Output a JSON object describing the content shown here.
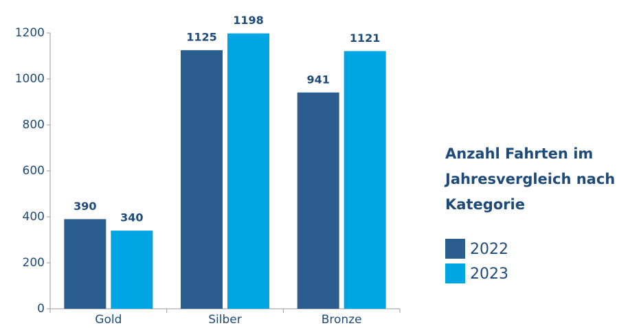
{
  "chart_data": {
    "type": "bar",
    "title": "Anzahl Fahrten im Jahresvergleich nach Kategorie",
    "categories": [
      "Gold",
      "Silber",
      "Bronze"
    ],
    "series": [
      {
        "name": "2022",
        "color": "#2b5e8f",
        "values": [
          390,
          1125,
          941
        ]
      },
      {
        "name": "2023",
        "color": "#00a5e3",
        "values": [
          340,
          1198,
          1121
        ]
      }
    ],
    "ylim": [
      0,
      1200
    ],
    "yticks": [
      0,
      200,
      400,
      600,
      800,
      1000,
      1200
    ]
  }
}
